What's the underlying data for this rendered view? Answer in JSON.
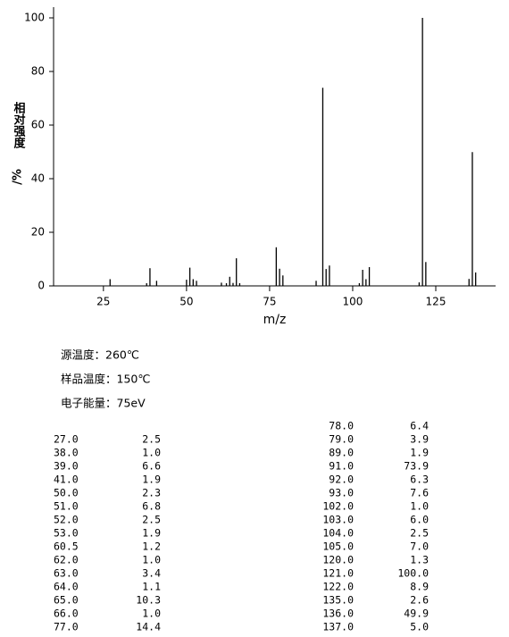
{
  "chart_data": {
    "type": "stem",
    "xlabel": "m/z",
    "ylabel": "相对强度",
    "ylabel_unit": "/%",
    "color": "#000000",
    "x": [
      27,
      38,
      39,
      41,
      50,
      51,
      52,
      53,
      60.5,
      62,
      63,
      64,
      65,
      66,
      77,
      78,
      79,
      89,
      91,
      92,
      93,
      102,
      103,
      104,
      105,
      120,
      121,
      122,
      135,
      136,
      137
    ],
    "values": [
      2.5,
      1.0,
      6.6,
      1.9,
      2.3,
      6.8,
      2.5,
      1.9,
      1.2,
      1.0,
      3.4,
      1.1,
      10.3,
      1.0,
      14.4,
      6.4,
      3.9,
      1.9,
      73.9,
      6.3,
      7.6,
      1.0,
      6.0,
      2.5,
      7.0,
      1.3,
      100.0,
      8.9,
      2.6,
      49.9,
      5.0
    ],
    "xlim": [
      10,
      143
    ],
    "xticks": [
      25,
      50,
      75,
      100,
      125
    ],
    "ylim": [
      0,
      104
    ],
    "yticks": [
      0,
      20,
      40,
      60,
      80,
      100
    ]
  },
  "info": [
    "源温度：260℃",
    "样品温度：150℃",
    "电子能量：75eV"
  ],
  "table": {
    "left": [
      [
        "27.0",
        "2.5"
      ],
      [
        "38.0",
        "1.0"
      ],
      [
        "39.0",
        "6.6"
      ],
      [
        "41.0",
        "1.9"
      ],
      [
        "50.0",
        "2.3"
      ],
      [
        "51.0",
        "6.8"
      ],
      [
        "52.0",
        "2.5"
      ],
      [
        "53.0",
        "1.9"
      ],
      [
        "60.5",
        "1.2"
      ],
      [
        "62.0",
        "1.0"
      ],
      [
        "63.0",
        "3.4"
      ],
      [
        "64.0",
        "1.1"
      ],
      [
        "65.0",
        "10.3"
      ],
      [
        "66.0",
        "1.0"
      ],
      [
        "77.0",
        "14.4"
      ]
    ],
    "right": [
      [
        "78.0",
        "6.4"
      ],
      [
        "79.0",
        "3.9"
      ],
      [
        "89.0",
        "1.9"
      ],
      [
        "91.0",
        "73.9"
      ],
      [
        "92.0",
        "6.3"
      ],
      [
        "93.0",
        "7.6"
      ],
      [
        "102.0",
        "1.0"
      ],
      [
        "103.0",
        "6.0"
      ],
      [
        "104.0",
        "2.5"
      ],
      [
        "105.0",
        "7.0"
      ],
      [
        "120.0",
        "1.3"
      ],
      [
        "121.0",
        "100.0"
      ],
      [
        "122.0",
        "8.9"
      ],
      [
        "135.0",
        "2.6"
      ],
      [
        "136.0",
        "49.9"
      ],
      [
        "137.0",
        "5.0"
      ]
    ]
  }
}
